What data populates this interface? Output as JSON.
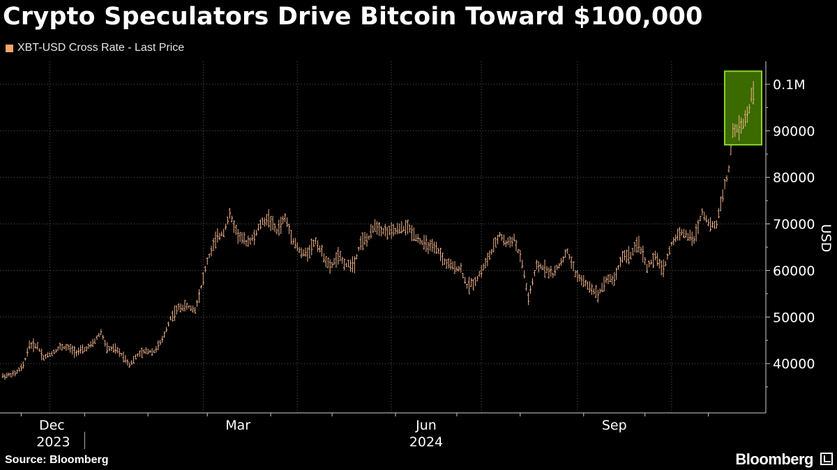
{
  "header": {
    "title": "Crypto Speculators Drive Bitcoin Toward $100,000"
  },
  "legend": {
    "label": "XBT-USD Cross Rate - Last Price",
    "color": "#f4a46b"
  },
  "footer": {
    "source": "Source: Bloomberg",
    "brand": "Bloomberg"
  },
  "colors": {
    "background": "#000000",
    "series": "#f2b48a",
    "highlight_fill": "#3a6a00",
    "highlight_stroke": "#8bd32a",
    "grid": "#5a5a5a"
  },
  "chart_data": {
    "type": "bar",
    "subtype": "ohlc",
    "ylabel": "USD",
    "yticks": [
      {
        "value": 40000,
        "label": "40000"
      },
      {
        "value": 50000,
        "label": "50000"
      },
      {
        "value": 60000,
        "label": "60000"
      },
      {
        "value": 70000,
        "label": "70000"
      },
      {
        "value": 80000,
        "label": "80000"
      },
      {
        "value": 90000,
        "label": "90000"
      },
      {
        "value": 100000,
        "label": "0.1M"
      }
    ],
    "ylim": [
      33000,
      105000
    ],
    "xlim": [
      "2023-11-22",
      "2024-11-25"
    ],
    "xticks": [
      {
        "date": "2023-12-01",
        "label": "Dec",
        "year": "2023"
      },
      {
        "date": "2024-03-01",
        "label": "Mar",
        "year": ""
      },
      {
        "date": "2024-06-01",
        "label": "Jun",
        "year": "2024"
      },
      {
        "date": "2024-09-01",
        "label": "Sep",
        "year": ""
      }
    ],
    "grid": true,
    "legend_position": "top-left",
    "highlight": {
      "start": "2024-11-11",
      "end": "2024-11-25",
      "low": 87000,
      "high": 102800
    },
    "series": [
      {
        "name": "XBT-USD Cross Rate - Last Price",
        "points": [
          [
            "2023-11-22",
            37300
          ],
          [
            "2023-11-28",
            37800
          ],
          [
            "2023-12-02",
            39500
          ],
          [
            "2023-12-05",
            44000
          ],
          [
            "2023-12-09",
            43800
          ],
          [
            "2023-12-12",
            41300
          ],
          [
            "2023-12-16",
            42200
          ],
          [
            "2023-12-20",
            43600
          ],
          [
            "2023-12-24",
            43400
          ],
          [
            "2023-12-28",
            42500
          ],
          [
            "2024-01-01",
            43000
          ],
          [
            "2024-01-05",
            44200
          ],
          [
            "2024-01-09",
            46800
          ],
          [
            "2024-01-12",
            43200
          ],
          [
            "2024-01-16",
            43100
          ],
          [
            "2024-01-20",
            41600
          ],
          [
            "2024-01-23",
            39800
          ],
          [
            "2024-01-27",
            41800
          ],
          [
            "2024-01-31",
            42700
          ],
          [
            "2024-02-04",
            42600
          ],
          [
            "2024-02-08",
            45000
          ],
          [
            "2024-02-12",
            49800
          ],
          [
            "2024-02-16",
            52000
          ],
          [
            "2024-02-20",
            52300
          ],
          [
            "2024-02-24",
            51500
          ],
          [
            "2024-02-27",
            56500
          ],
          [
            "2024-03-01",
            62000
          ],
          [
            "2024-03-05",
            66500
          ],
          [
            "2024-03-09",
            68300
          ],
          [
            "2024-03-12",
            72000
          ],
          [
            "2024-03-16",
            67600
          ],
          [
            "2024-03-20",
            66100
          ],
          [
            "2024-03-24",
            67100
          ],
          [
            "2024-03-27",
            70000
          ],
          [
            "2024-03-31",
            71200
          ],
          [
            "2024-04-04",
            68400
          ],
          [
            "2024-04-08",
            71400
          ],
          [
            "2024-04-12",
            66500
          ],
          [
            "2024-04-16",
            63600
          ],
          [
            "2024-04-19",
            63800
          ],
          [
            "2024-04-23",
            66400
          ],
          [
            "2024-04-26",
            63800
          ],
          [
            "2024-04-30",
            60600
          ],
          [
            "2024-05-04",
            63100
          ],
          [
            "2024-05-08",
            61200
          ],
          [
            "2024-05-12",
            61600
          ],
          [
            "2024-05-15",
            66200
          ],
          [
            "2024-05-19",
            66900
          ],
          [
            "2024-05-22",
            69800
          ],
          [
            "2024-05-26",
            68500
          ],
          [
            "2024-05-30",
            68300
          ],
          [
            "2024-06-03",
            68800
          ],
          [
            "2024-06-07",
            69300
          ],
          [
            "2024-06-11",
            67300
          ],
          [
            "2024-06-14",
            66000
          ],
          [
            "2024-06-18",
            65100
          ],
          [
            "2024-06-22",
            64200
          ],
          [
            "2024-06-25",
            61800
          ],
          [
            "2024-06-29",
            60800
          ],
          [
            "2024-07-03",
            60300
          ],
          [
            "2024-07-06",
            56600
          ],
          [
            "2024-07-10",
            57700
          ],
          [
            "2024-07-14",
            60700
          ],
          [
            "2024-07-18",
            64000
          ],
          [
            "2024-07-22",
            67700
          ],
          [
            "2024-07-25",
            65800
          ],
          [
            "2024-07-29",
            66800
          ],
          [
            "2024-08-02",
            61400
          ],
          [
            "2024-08-05",
            54000
          ],
          [
            "2024-08-09",
            60900
          ],
          [
            "2024-08-13",
            60600
          ],
          [
            "2024-08-17",
            59100
          ],
          [
            "2024-08-20",
            61100
          ],
          [
            "2024-08-24",
            64100
          ],
          [
            "2024-08-28",
            59400
          ],
          [
            "2024-09-01",
            57500
          ],
          [
            "2024-09-05",
            56100
          ],
          [
            "2024-09-08",
            54800
          ],
          [
            "2024-09-12",
            58100
          ],
          [
            "2024-09-16",
            58200
          ],
          [
            "2024-09-20",
            63100
          ],
          [
            "2024-09-24",
            63300
          ],
          [
            "2024-09-28",
            65800
          ],
          [
            "2024-10-02",
            60700
          ],
          [
            "2024-10-06",
            62800
          ],
          [
            "2024-10-10",
            60300
          ],
          [
            "2024-10-14",
            65600
          ],
          [
            "2024-10-18",
            68400
          ],
          [
            "2024-10-22",
            67400
          ],
          [
            "2024-10-25",
            66600
          ],
          [
            "2024-10-29",
            72700
          ],
          [
            "2024-11-02",
            69500
          ],
          [
            "2024-11-05",
            70000
          ],
          [
            "2024-11-08",
            76500
          ],
          [
            "2024-11-11",
            81500
          ],
          [
            "2024-11-13",
            90000
          ],
          [
            "2024-11-16",
            90600
          ],
          [
            "2024-11-19",
            92300
          ],
          [
            "2024-11-21",
            94500
          ],
          [
            "2024-11-22",
            97500
          ],
          [
            "2024-11-23",
            98600
          ]
        ]
      }
    ]
  }
}
